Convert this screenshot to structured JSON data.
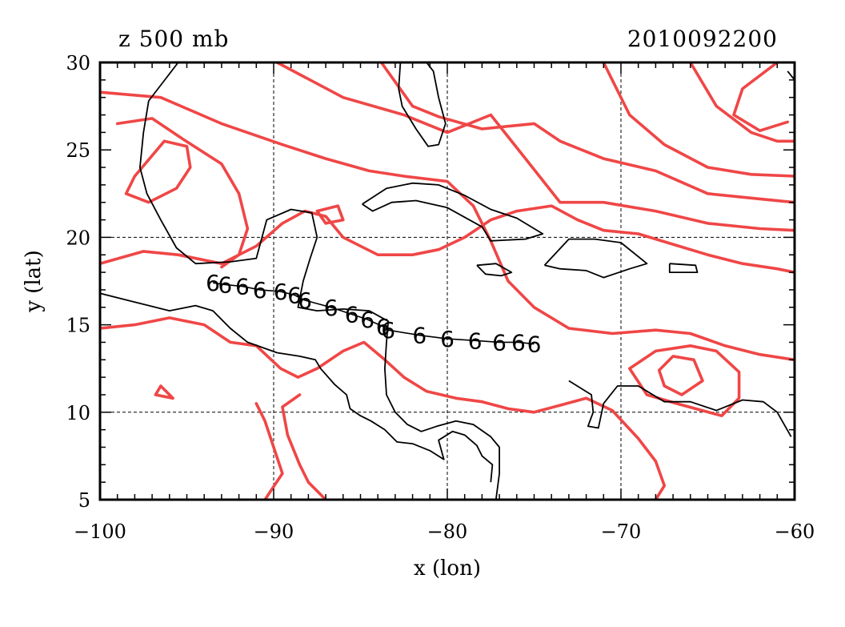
{
  "title_left": "z 500 mb",
  "title_right": "2010092200",
  "axes": {
    "xlabel": "x (lon)",
    "ylabel": "y (lat)",
    "xlim": [
      -100,
      -60
    ],
    "ylim": [
      5,
      30
    ],
    "x_ticks": [
      -100,
      -90,
      -80,
      -70,
      -60
    ],
    "x_tick_labels": [
      "−100",
      "−90",
      "−80",
      "−70",
      "−60"
    ],
    "y_ticks": [
      5,
      10,
      15,
      20,
      25,
      30
    ],
    "y_tick_labels": [
      "5",
      "10",
      "15",
      "20",
      "25",
      "30"
    ],
    "grid": true,
    "grid_style": "dashed"
  },
  "colors": {
    "contour": "#f04646",
    "coastline": "#000000",
    "track": "#000000"
  },
  "storm_track": {
    "symbol": "6",
    "points": [
      {
        "lon": -93.5,
        "lat": 17.4
      },
      {
        "lon": -92.8,
        "lat": 17.3
      },
      {
        "lon": -91.8,
        "lat": 17.2
      },
      {
        "lon": -90.8,
        "lat": 17.0
      },
      {
        "lon": -89.6,
        "lat": 16.9
      },
      {
        "lon": -88.8,
        "lat": 16.7
      },
      {
        "lon": -88.2,
        "lat": 16.4
      },
      {
        "lon": -86.7,
        "lat": 16.0
      },
      {
        "lon": -85.5,
        "lat": 15.6
      },
      {
        "lon": -84.6,
        "lat": 15.3
      },
      {
        "lon": -83.7,
        "lat": 14.9
      },
      {
        "lon": -83.4,
        "lat": 14.7
      },
      {
        "lon": -81.6,
        "lat": 14.4
      },
      {
        "lon": -80.0,
        "lat": 14.2
      },
      {
        "lon": -78.4,
        "lat": 14.1
      },
      {
        "lon": -77.0,
        "lat": 14.0
      },
      {
        "lon": -75.9,
        "lat": 14.0
      },
      {
        "lon": -75.0,
        "lat": 13.9
      }
    ]
  },
  "coastlines": [
    [
      [
        -95.5,
        30
      ],
      [
        -97.2,
        27.8
      ],
      [
        -97.5,
        26
      ],
      [
        -97.7,
        24
      ],
      [
        -97.3,
        22.5
      ],
      [
        -96.5,
        21.0
      ],
      [
        -95.6,
        19.4
      ],
      [
        -94.5,
        18.5
      ],
      [
        -92.5,
        18.6
      ],
      [
        -91.0,
        18.8
      ],
      [
        -90.4,
        21.0
      ],
      [
        -89.0,
        21.6
      ],
      [
        -87.8,
        21.4
      ],
      [
        -87.5,
        20.0
      ],
      [
        -87.9,
        18.8
      ],
      [
        -88.3,
        17.5
      ],
      [
        -88.6,
        16.0
      ],
      [
        -87.5,
        15.8
      ],
      [
        -86.0,
        15.9
      ],
      [
        -84.5,
        15.8
      ],
      [
        -83.4,
        15.2
      ],
      [
        -83.5,
        14.0
      ],
      [
        -83.6,
        12.5
      ],
      [
        -83.5,
        11.0
      ],
      [
        -83.0,
        10.0
      ],
      [
        -82.3,
        9.3
      ],
      [
        -81.5,
        8.9
      ],
      [
        -80.6,
        9.2
      ],
      [
        -79.5,
        9.5
      ],
      [
        -78.5,
        9.3
      ],
      [
        -77.5,
        8.6
      ],
      [
        -77.0,
        8.0
      ],
      [
        -77.0,
        6.5
      ],
      [
        -77.2,
        5.0
      ]
    ],
    [
      [
        -100,
        16.8
      ],
      [
        -98.0,
        16.3
      ],
      [
        -96.0,
        15.8
      ],
      [
        -94.5,
        16.1
      ],
      [
        -93.5,
        15.8
      ],
      [
        -92.5,
        14.8
      ],
      [
        -91.5,
        14.0
      ],
      [
        -89.8,
        13.4
      ],
      [
        -88.5,
        13.2
      ],
      [
        -87.6,
        13.0
      ],
      [
        -87.3,
        12.5
      ],
      [
        -86.5,
        11.6
      ],
      [
        -85.8,
        11.0
      ],
      [
        -85.6,
        10.2
      ],
      [
        -85.0,
        9.8
      ],
      [
        -84.4,
        9.5
      ],
      [
        -83.6,
        9.0
      ],
      [
        -82.9,
        8.3
      ],
      [
        -82.0,
        8.2
      ],
      [
        -81.0,
        7.8
      ],
      [
        -80.2,
        7.3
      ],
      [
        -80.5,
        8.4
      ],
      [
        -79.7,
        8.9
      ],
      [
        -79.0,
        8.7
      ],
      [
        -78.3,
        8.1
      ],
      [
        -78.0,
        7.5
      ],
      [
        -77.4,
        7.0
      ],
      [
        -77.5,
        6.0
      ]
    ],
    [
      [
        -82.7,
        30
      ],
      [
        -82.8,
        28.5
      ],
      [
        -82.6,
        27.5
      ],
      [
        -81.8,
        26.2
      ],
      [
        -81.1,
        25.2
      ],
      [
        -80.5,
        25.3
      ],
      [
        -80.1,
        26.5
      ],
      [
        -80.5,
        28.0
      ],
      [
        -80.8,
        29.5
      ],
      [
        -81.2,
        30
      ]
    ],
    [
      [
        -84.9,
        21.9
      ],
      [
        -83.5,
        22.8
      ],
      [
        -82.0,
        23.1
      ],
      [
        -80.5,
        23.0
      ],
      [
        -79.0,
        22.4
      ],
      [
        -77.5,
        21.6
      ],
      [
        -76.0,
        21.1
      ],
      [
        -74.5,
        20.2
      ],
      [
        -75.5,
        19.9
      ],
      [
        -77.5,
        19.8
      ],
      [
        -78.0,
        20.6
      ],
      [
        -80.0,
        21.7
      ],
      [
        -81.8,
        22.1
      ],
      [
        -83.2,
        22.0
      ],
      [
        -84.3,
        21.5
      ],
      [
        -84.9,
        21.9
      ]
    ],
    [
      [
        -78.3,
        18.4
      ],
      [
        -77.2,
        18.5
      ],
      [
        -76.3,
        18.0
      ],
      [
        -76.9,
        17.8
      ],
      [
        -77.8,
        17.9
      ],
      [
        -78.3,
        18.4
      ]
    ],
    [
      [
        -74.4,
        18.4
      ],
      [
        -73.0,
        19.9
      ],
      [
        -71.5,
        19.9
      ],
      [
        -70.0,
        19.7
      ],
      [
        -68.5,
        18.5
      ],
      [
        -69.5,
        18.2
      ],
      [
        -71.0,
        17.7
      ],
      [
        -72.0,
        18.1
      ],
      [
        -73.5,
        18.2
      ],
      [
        -74.4,
        18.4
      ]
    ],
    [
      [
        -67.2,
        18.5
      ],
      [
        -65.7,
        18.4
      ],
      [
        -65.6,
        18.0
      ],
      [
        -67.2,
        18.0
      ],
      [
        -67.2,
        18.5
      ]
    ],
    [
      [
        -73.0,
        11.8
      ],
      [
        -71.7,
        11.0
      ],
      [
        -71.6,
        10.0
      ],
      [
        -71.9,
        9.2
      ],
      [
        -71.3,
        9.1
      ],
      [
        -71.0,
        10.5
      ],
      [
        -70.2,
        11.5
      ],
      [
        -69.0,
        11.5
      ],
      [
        -67.5,
        10.6
      ],
      [
        -66.0,
        10.6
      ],
      [
        -64.5,
        10.1
      ],
      [
        -63.0,
        10.7
      ],
      [
        -61.8,
        10.6
      ],
      [
        -61.0,
        10.0
      ],
      [
        -60.2,
        8.6
      ]
    ],
    [
      [
        -60.4,
        29.5
      ],
      [
        -60,
        29.0
      ]
    ]
  ],
  "contours": [
    [
      [
        -100,
        18.5
      ],
      [
        -97.5,
        19.2
      ],
      [
        -95.5,
        19.0
      ],
      [
        -93.0,
        18.5
      ],
      [
        -91.0,
        19.5
      ],
      [
        -89.5,
        20.8
      ],
      [
        -88.2,
        21.5
      ],
      [
        -87.0,
        21.2
      ],
      [
        -86.0,
        20.0
      ],
      [
        -85.0,
        19.5
      ],
      [
        -84.0,
        19.0
      ],
      [
        -82.0,
        19.0
      ],
      [
        -80.5,
        19.3
      ],
      [
        -79.0,
        20.0
      ],
      [
        -77.5,
        21.0
      ],
      [
        -76.0,
        21.5
      ],
      [
        -74.0,
        21.8
      ],
      [
        -72.5,
        21.0
      ],
      [
        -71.0,
        20.4
      ],
      [
        -69.0,
        20.2
      ],
      [
        -67.0,
        19.6
      ],
      [
        -65.0,
        19.0
      ],
      [
        -63.0,
        18.5
      ],
      [
        -61.0,
        18.2
      ],
      [
        -60,
        18.0
      ]
    ],
    [
      [
        -100,
        14.8
      ],
      [
        -98.0,
        15.0
      ],
      [
        -96.0,
        15.4
      ],
      [
        -94.0,
        15.0
      ],
      [
        -92.5,
        14.0
      ],
      [
        -91.0,
        13.8
      ],
      [
        -89.6,
        12.5
      ],
      [
        -88.6,
        12.0
      ],
      [
        -87.5,
        12.5
      ],
      [
        -86.0,
        13.5
      ],
      [
        -84.8,
        14.0
      ],
      [
        -83.6,
        13.0
      ],
      [
        -82.5,
        12.0
      ],
      [
        -81.2,
        11.2
      ],
      [
        -79.5,
        10.8
      ],
      [
        -78.0,
        10.6
      ],
      [
        -76.5,
        10.2
      ],
      [
        -75.0,
        10.0
      ],
      [
        -73.5,
        10.4
      ],
      [
        -72.0,
        10.8
      ],
      [
        -70.5,
        10.1
      ],
      [
        -69.0,
        8.5
      ],
      [
        -68.0,
        7.2
      ],
      [
        -67.5,
        5.8
      ],
      [
        -68.0,
        5.0
      ]
    ],
    [
      [
        -98.0,
        23.5
      ],
      [
        -96.3,
        25.5
      ],
      [
        -95.0,
        25.2
      ],
      [
        -94.8,
        24.0
      ],
      [
        -95.6,
        22.8
      ],
      [
        -97.2,
        22.0
      ],
      [
        -98.5,
        22.5
      ],
      [
        -98.0,
        23.5
      ]
    ],
    [
      [
        -99.0,
        26.5
      ],
      [
        -97.0,
        26.8
      ],
      [
        -95.2,
        25.6
      ],
      [
        -93.0,
        24.2
      ],
      [
        -92.0,
        22.5
      ],
      [
        -91.5,
        20.5
      ],
      [
        -92.0,
        19.0
      ],
      [
        -93.0,
        18.3
      ]
    ],
    [
      [
        -100,
        28.3
      ],
      [
        -96.5,
        28.0
      ],
      [
        -93.0,
        26.5
      ],
      [
        -89.5,
        25.3
      ],
      [
        -87.0,
        24.5
      ],
      [
        -84.5,
        23.8
      ],
      [
        -82.5,
        23.5
      ],
      [
        -80.0,
        23.2
      ],
      [
        -78.5,
        21.8
      ],
      [
        -77.5,
        19.8
      ],
      [
        -76.5,
        17.5
      ],
      [
        -75.0,
        16.0
      ],
      [
        -73.0,
        14.8
      ],
      [
        -70.5,
        14.5
      ],
      [
        -68.0,
        14.7
      ],
      [
        -66.0,
        14.5
      ],
      [
        -64.0,
        13.8
      ],
      [
        -62.0,
        13.3
      ],
      [
        -60,
        13.0
      ]
    ],
    [
      [
        -89.8,
        30
      ],
      [
        -86.0,
        28.0
      ],
      [
        -82.5,
        27.0
      ],
      [
        -80.0,
        26.0
      ],
      [
        -77.5,
        27.0
      ],
      [
        -75.5,
        24.5
      ],
      [
        -73.5,
        22.0
      ],
      [
        -71.0,
        22.0
      ],
      [
        -68.0,
        21.5
      ],
      [
        -65.0,
        20.8
      ],
      [
        -62.0,
        20.5
      ],
      [
        -60,
        20.4
      ]
    ],
    [
      [
        -83.8,
        30
      ],
      [
        -82.0,
        27.5
      ],
      [
        -80.5,
        26.9
      ],
      [
        -78.0,
        26.2
      ],
      [
        -75.0,
        26.5
      ],
      [
        -73.5,
        25.5
      ],
      [
        -71.0,
        24.5
      ],
      [
        -68.0,
        23.8
      ],
      [
        -65.0,
        22.5
      ],
      [
        -62.0,
        22.2
      ],
      [
        -60,
        22.0
      ]
    ],
    [
      [
        -71.0,
        30
      ],
      [
        -69.5,
        27.0
      ],
      [
        -67.5,
        25.3
      ],
      [
        -65.0,
        24.0
      ],
      [
        -62.5,
        23.6
      ],
      [
        -60,
        23.5
      ]
    ],
    [
      [
        -66.0,
        30
      ],
      [
        -64.5,
        27.5
      ],
      [
        -62.5,
        26.0
      ],
      [
        -61.0,
        25.5
      ],
      [
        -60,
        25.5
      ]
    ],
    [
      [
        -61.0,
        30
      ],
      [
        -63.0,
        28.5
      ],
      [
        -63.5,
        27.0
      ],
      [
        -62.0,
        26.1
      ],
      [
        -60.4,
        26.6
      ]
    ],
    [
      [
        -67.5,
        11.5
      ],
      [
        -66.5,
        11.0
      ],
      [
        -65.3,
        11.8
      ],
      [
        -65.8,
        13.0
      ],
      [
        -67.0,
        13.2
      ],
      [
        -67.8,
        12.4
      ],
      [
        -67.5,
        11.5
      ]
    ],
    [
      [
        -68.5,
        11.0
      ],
      [
        -66.8,
        10.5
      ],
      [
        -64.2,
        9.8
      ],
      [
        -63.2,
        10.8
      ],
      [
        -63.2,
        12.3
      ],
      [
        -64.5,
        13.5
      ],
      [
        -66.0,
        13.8
      ],
      [
        -68.0,
        13.5
      ],
      [
        -69.5,
        12.5
      ],
      [
        -68.5,
        11.0
      ]
    ],
    [
      [
        -96.8,
        11.0
      ],
      [
        -95.8,
        10.8
      ],
      [
        -96.5,
        11.5
      ],
      [
        -96.8,
        11.0
      ]
    ],
    [
      [
        -88.5,
        11.0
      ],
      [
        -89.5,
        10.3
      ],
      [
        -89.2,
        8.7
      ],
      [
        -88.5,
        7.0
      ],
      [
        -88.0,
        6.0
      ],
      [
        -87.0,
        5.0
      ]
    ],
    [
      [
        -87.5,
        21.5
      ],
      [
        -86.3,
        21.8
      ],
      [
        -86.0,
        21.0
      ],
      [
        -87.0,
        20.8
      ],
      [
        -87.5,
        21.5
      ]
    ],
    [
      [
        -90.5,
        5.0
      ],
      [
        -89.5,
        6.5
      ],
      [
        -90.0,
        8.0
      ],
      [
        -90.5,
        9.5
      ],
      [
        -91.0,
        10.5
      ]
    ]
  ]
}
